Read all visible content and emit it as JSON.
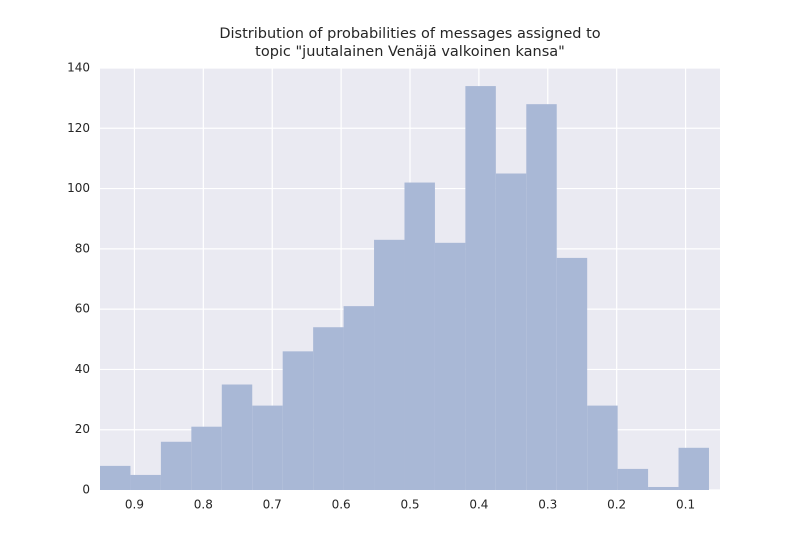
{
  "chart_data": {
    "type": "histogram",
    "title": [
      "Distribution of probabilities of messages assigned to",
      "topic \"juutalainen Venäjä valkoinen kansa\""
    ],
    "bins": [
      0.066,
      0.1102,
      0.1544,
      0.1986,
      0.2428,
      0.287,
      0.3312,
      0.3754,
      0.4196,
      0.4638,
      0.508,
      0.5522,
      0.5964,
      0.6406,
      0.6848,
      0.729,
      0.7732,
      0.8174,
      0.8616,
      0.9058,
      0.95
    ],
    "counts": [
      14,
      1,
      7,
      28,
      77,
      128,
      105,
      134,
      82,
      102,
      83,
      61,
      54,
      46,
      28,
      35,
      21,
      16,
      5,
      8
    ],
    "color": "#a9b8d6",
    "xlim": [
      0.95,
      0.05
    ],
    "xticks": [
      0.9,
      0.8,
      0.7,
      0.6,
      0.5,
      0.4,
      0.3,
      0.2,
      0.1
    ],
    "ylim": [
      0,
      140
    ],
    "yticks": [
      0,
      20,
      40,
      60,
      80,
      100,
      120,
      140
    ],
    "grid": true
  }
}
